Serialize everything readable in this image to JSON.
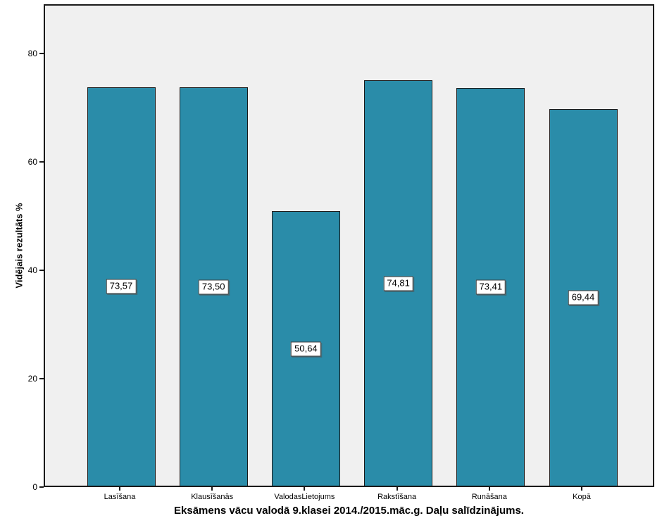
{
  "chart_data": {
    "type": "bar",
    "title": "Eksāmens vācu valodā 9.klasei 2014./2015.māc.g. Daļu salīdzinājums.",
    "ylabel": "Vidējais rezultāts %",
    "xlabel": "",
    "categories": [
      "Lasīšana",
      "Klausīšanās",
      "ValodasLietojums",
      "Rakstīšana",
      "Runāšana",
      "Kopā"
    ],
    "values": [
      73.57,
      73.5,
      50.64,
      74.81,
      73.41,
      69.44
    ],
    "value_labels": [
      "73,57",
      "73,50",
      "50,64",
      "74,81",
      "73,41",
      "69,44"
    ],
    "yticks": [
      0,
      20,
      40,
      60,
      80
    ],
    "ylim": [
      0,
      89.1
    ],
    "grid": false,
    "legend": "none",
    "bar_color": "#2A8CA9",
    "bar_border_color": "#1a1a1a",
    "plot_background": "#F0F0F0",
    "page_background": "#FFFFFF"
  }
}
